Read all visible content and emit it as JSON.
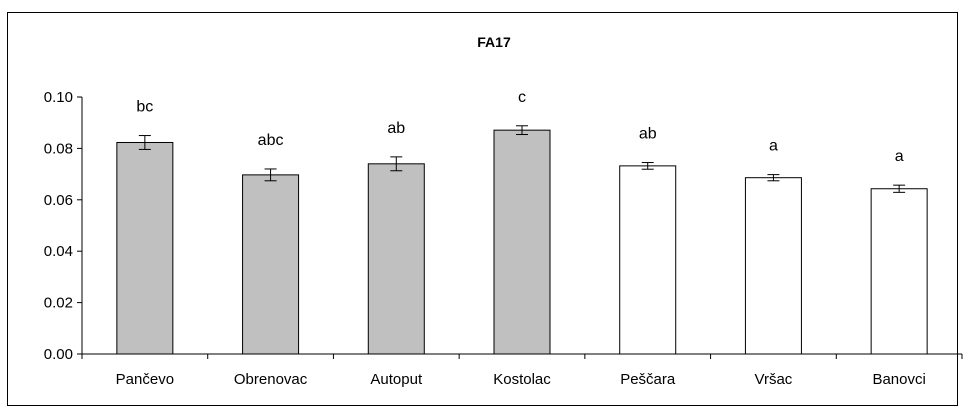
{
  "chart_data": {
    "type": "bar",
    "title": "FA17",
    "xlabel": "",
    "ylabel": "",
    "ylim": [
      0,
      0.1
    ],
    "yticks": [
      "0.00",
      "0.02",
      "0.04",
      "0.06",
      "0.08",
      "0.10"
    ],
    "categories": [
      "Pančevo",
      "Obrenovac",
      "Autoput",
      "Kostolac",
      "Peščara",
      "Vršac",
      "Banovci"
    ],
    "values": [
      0.0823,
      0.0697,
      0.074,
      0.0871,
      0.0732,
      0.0686,
      0.0643
    ],
    "errors": [
      0.0027,
      0.0023,
      0.0027,
      0.0017,
      0.0013,
      0.0012,
      0.0014
    ],
    "significance": [
      "bc",
      "abc",
      "ab",
      "c",
      "ab",
      "a",
      "a"
    ],
    "bar_colors": [
      "#c0c0c0",
      "#c0c0c0",
      "#c0c0c0",
      "#c0c0c0",
      "#ffffff",
      "#ffffff",
      "#ffffff"
    ],
    "grid": false,
    "legend": "none"
  }
}
